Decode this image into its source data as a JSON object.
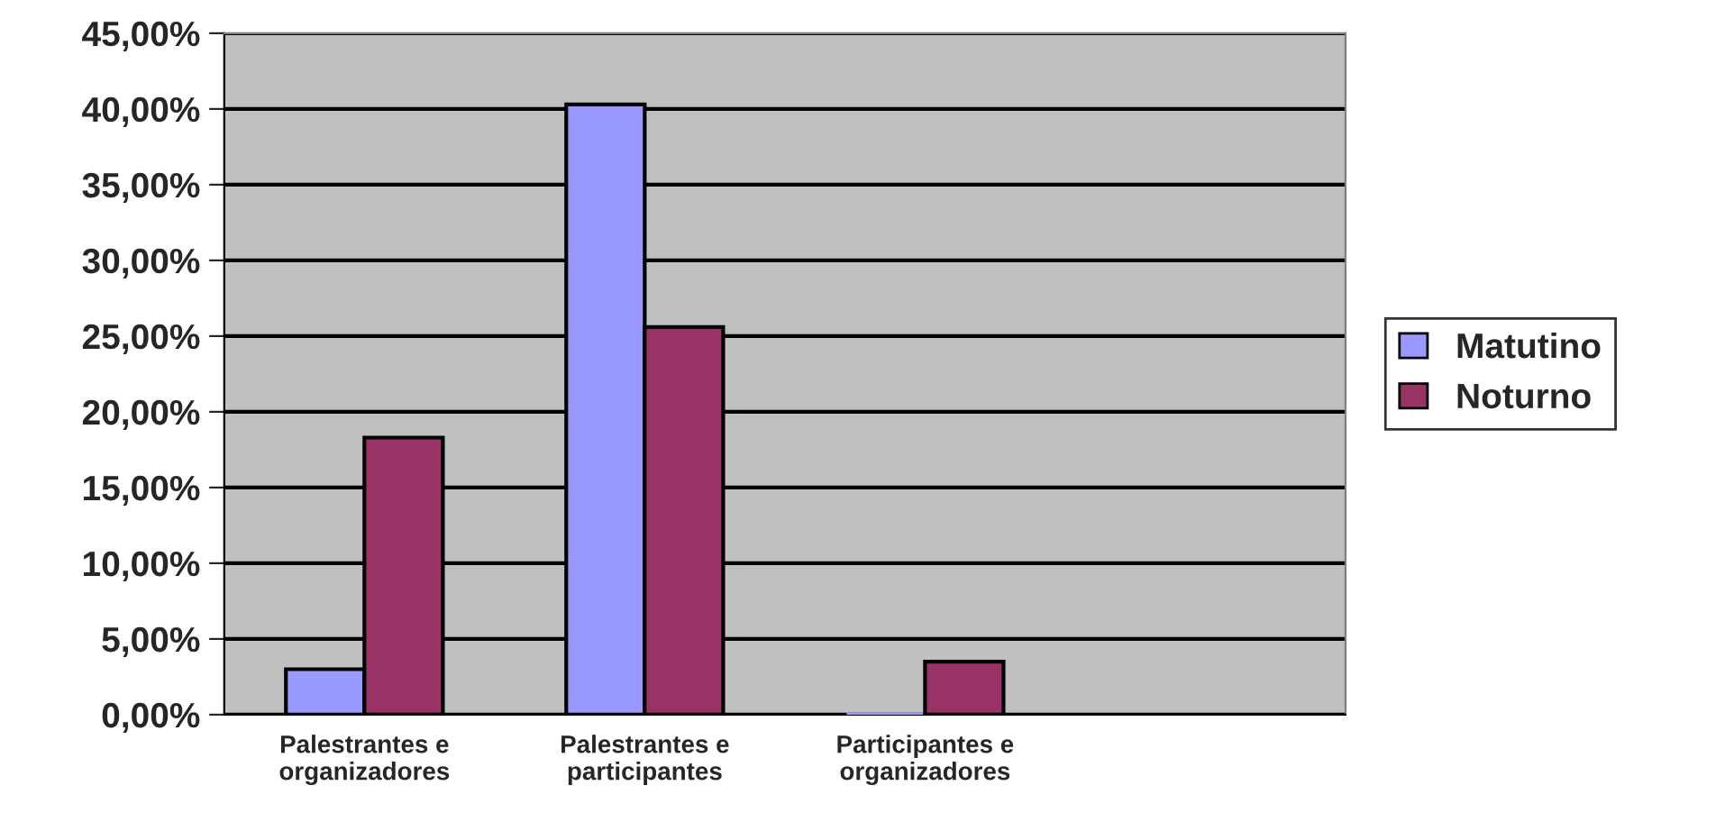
{
  "chart_data": {
    "type": "bar",
    "categories": [
      "Palestrantes e\norganizadores",
      "Palestrantes e\nparticipantes",
      "Participantes e\norganizadores",
      null
    ],
    "series": [
      {
        "name": "Matutino",
        "color": "#9999ff",
        "values": [
          3.0,
          40.3,
          0,
          null
        ]
      },
      {
        "name": "Noturno",
        "color": "#993366",
        "values": [
          18.3,
          25.6,
          3.5,
          null
        ]
      }
    ],
    "ylim": [
      0,
      45
    ],
    "yticks": [
      {
        "value": 0,
        "label": "0,00%"
      },
      {
        "value": 5,
        "label": "5,00%"
      },
      {
        "value": 10,
        "label": "10,00%"
      },
      {
        "value": 15,
        "label": "15,00%"
      },
      {
        "value": 20,
        "label": "20,00%"
      },
      {
        "value": 25,
        "label": "25,00%"
      },
      {
        "value": 30,
        "label": "30,00%"
      },
      {
        "value": 35,
        "label": "35,00%"
      },
      {
        "value": 40,
        "label": "40,00%"
      },
      {
        "value": 45,
        "label": "45,00%"
      }
    ],
    "grid": "y",
    "legend": "right"
  }
}
